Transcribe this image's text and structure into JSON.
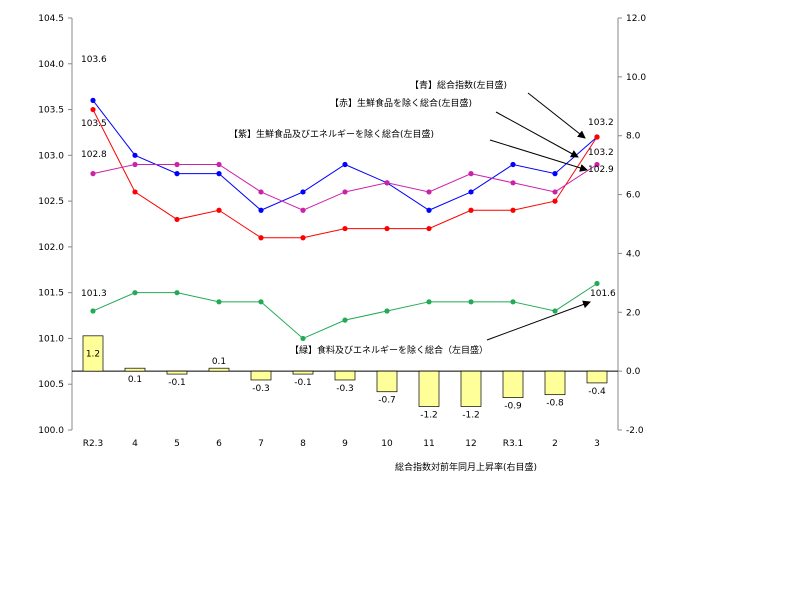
{
  "chart_data": {
    "type": "line+bar",
    "categories": [
      "R2.3",
      "4",
      "5",
      "6",
      "7",
      "8",
      "9",
      "10",
      "11",
      "12",
      "R3.1",
      "2",
      "3"
    ],
    "left_axis": {
      "ylim": [
        100.0,
        104.5
      ],
      "ticks": [
        "100.0",
        "100.5",
        "101.0",
        "101.5",
        "102.0",
        "102.5",
        "103.0",
        "103.5",
        "104.0",
        "104.5"
      ]
    },
    "right_axis": {
      "ylim": [
        -2.0,
        12.0
      ],
      "ticks": [
        "-2.0",
        "0.0",
        "2.0",
        "4.0",
        "6.0",
        "8.0",
        "10.0",
        "12.0"
      ]
    },
    "series": [
      {
        "name": "【青】総合指数(左目盛)",
        "color": "#0000ff",
        "axis": "left",
        "values": [
          103.6,
          103.0,
          102.8,
          102.8,
          102.4,
          102.6,
          102.9,
          102.7,
          102.4,
          102.6,
          102.9,
          102.8,
          103.2
        ]
      },
      {
        "name": "【赤】生鮮食品を除く総合(左目盛)",
        "color": "#ff0000",
        "axis": "left",
        "values": [
          103.5,
          102.6,
          102.3,
          102.4,
          102.1,
          102.1,
          102.2,
          102.2,
          102.2,
          102.4,
          102.4,
          102.5,
          103.2
        ]
      },
      {
        "name": "【紫】生鮮食品及びエネルギーを除く総合(左目盛)",
        "color": "#cc22aa",
        "axis": "left",
        "values": [
          102.8,
          102.9,
          102.9,
          102.9,
          102.6,
          102.4,
          102.6,
          102.7,
          102.6,
          102.8,
          102.7,
          102.6,
          102.9
        ]
      },
      {
        "name": "【緑】食料及びエネルギーを除く総合（左目盛）",
        "color": "#22aa55",
        "axis": "left",
        "values": [
          101.3,
          101.5,
          101.5,
          101.4,
          101.4,
          101.0,
          101.2,
          101.3,
          101.4,
          101.4,
          101.4,
          101.3,
          101.6
        ]
      },
      {
        "name": "総合指数対前年同月上昇率(右目盛)",
        "type": "bar",
        "color": "#ffff99",
        "axis": "right",
        "values": [
          1.2,
          0.1,
          -0.1,
          0.1,
          -0.3,
          -0.1,
          -0.3,
          -0.7,
          -1.2,
          -1.2,
          -0.9,
          -0.8,
          -0.4
        ]
      }
    ],
    "point_labels": [
      {
        "series": 0,
        "index": 0,
        "text": "103.6"
      },
      {
        "series": 1,
        "index": 0,
        "text": "103.5"
      },
      {
        "series": 2,
        "index": 0,
        "text": "102.8"
      },
      {
        "series": 3,
        "index": 0,
        "text": "101.3"
      },
      {
        "series": 1,
        "index": 12,
        "text": "103.2"
      },
      {
        "series": 0,
        "index": 12,
        "text": "103.2"
      },
      {
        "series": 2,
        "index": 12,
        "text": "102.9"
      },
      {
        "series": 3,
        "index": 12,
        "text": "101.6"
      }
    ],
    "bar_labels": [
      "1.2",
      "0.1",
      "-0.1",
      "0.1",
      "-0.3",
      "-0.1",
      "-0.3",
      "-0.7",
      "-1.2",
      "-1.2",
      "-0.9",
      "-0.8",
      "-0.4"
    ]
  }
}
